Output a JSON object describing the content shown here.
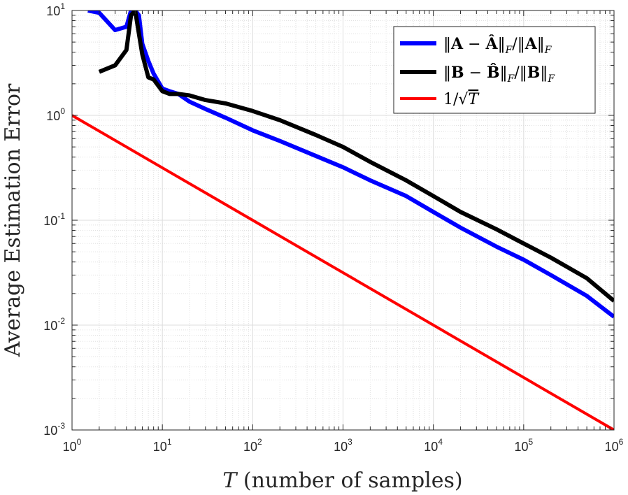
{
  "chart_data": {
    "type": "line",
    "title": "",
    "xlabel": "T (number of samples)",
    "xlabel_parts": {
      "var": "T",
      "rest": " (number of samples)"
    },
    "ylabel": "Average Estimation Error",
    "xscale": "log",
    "yscale": "log",
    "xlim": [
      1,
      1000000
    ],
    "ylim": [
      0.001,
      10
    ],
    "x_ticks": [
      {
        "value": 1,
        "base": "10",
        "exp": "0"
      },
      {
        "value": 10,
        "base": "10",
        "exp": "1"
      },
      {
        "value": 100,
        "base": "10",
        "exp": "2"
      },
      {
        "value": 1000,
        "base": "10",
        "exp": "3"
      },
      {
        "value": 10000,
        "base": "10",
        "exp": "4"
      },
      {
        "value": 100000,
        "base": "10",
        "exp": "5"
      },
      {
        "value": 1000000,
        "base": "10",
        "exp": "6"
      }
    ],
    "y_ticks": [
      {
        "value": 0.001,
        "base": "10",
        "exp": "-3"
      },
      {
        "value": 0.01,
        "base": "10",
        "exp": "-2"
      },
      {
        "value": 0.1,
        "base": "10",
        "exp": "-1"
      },
      {
        "value": 1,
        "base": "10",
        "exp": "0"
      },
      {
        "value": 10,
        "base": "10",
        "exp": "1"
      }
    ],
    "grid": true,
    "legend_position": "top-right",
    "series": [
      {
        "name": "||A - Â||_F / ||A||_F",
        "color": "#0000ff",
        "x": [
          1.5,
          2,
          3,
          4,
          4.5,
          5,
          5.5,
          6,
          7,
          8,
          10,
          12,
          15,
          20,
          30,
          50,
          100,
          200,
          500,
          1000,
          2000,
          5000,
          10000,
          20000,
          50000,
          100000,
          200000,
          500000,
          1000000
        ],
        "y": [
          10,
          9.5,
          6.5,
          7,
          10,
          10,
          9,
          4.8,
          3.3,
          2.5,
          1.8,
          1.7,
          1.6,
          1.35,
          1.15,
          0.95,
          0.72,
          0.57,
          0.41,
          0.32,
          0.24,
          0.17,
          0.12,
          0.085,
          0.056,
          0.042,
          0.03,
          0.019,
          0.012
        ]
      },
      {
        "name": "||B - B̂||_F / ||B||_F",
        "color": "#000000",
        "x": [
          2,
          3,
          4,
          4.5,
          5,
          5.5,
          6,
          7,
          8,
          10,
          12,
          15,
          20,
          30,
          50,
          100,
          200,
          500,
          1000,
          2000,
          5000,
          10000,
          20000,
          50000,
          100000,
          200000,
          500000,
          1000000
        ],
        "y": [
          2.6,
          3.0,
          4.2,
          9,
          10,
          6,
          3.8,
          2.3,
          2.2,
          1.7,
          1.6,
          1.6,
          1.55,
          1.4,
          1.3,
          1.1,
          0.9,
          0.65,
          0.5,
          0.36,
          0.24,
          0.17,
          0.12,
          0.082,
          0.06,
          0.044,
          0.028,
          0.017
        ]
      },
      {
        "name": "1/√T",
        "color": "#ff0000",
        "x": [
          1,
          1000000
        ],
        "y": [
          1,
          0.001
        ]
      }
    ],
    "legend": [
      {
        "label_a": "‖",
        "label_b": "A",
        "label_c": " − ",
        "label_d": "Â",
        "label_e": "‖",
        "label_f": "F",
        "label_g": "/‖",
        "label_h": "A",
        "label_i": "‖",
        "label_j": "F",
        "color": "#0000ff"
      },
      {
        "label_a": "‖",
        "label_b": "B",
        "label_c": " − ",
        "label_d": "B̂",
        "label_e": "‖",
        "label_f": "F",
        "label_g": "/‖",
        "label_h": "B",
        "label_i": "‖",
        "label_j": "F",
        "color": "#000000"
      },
      {
        "label_a": "1/",
        "label_b": "√",
        "label_c": "T",
        "color": "#ff0000"
      }
    ]
  }
}
